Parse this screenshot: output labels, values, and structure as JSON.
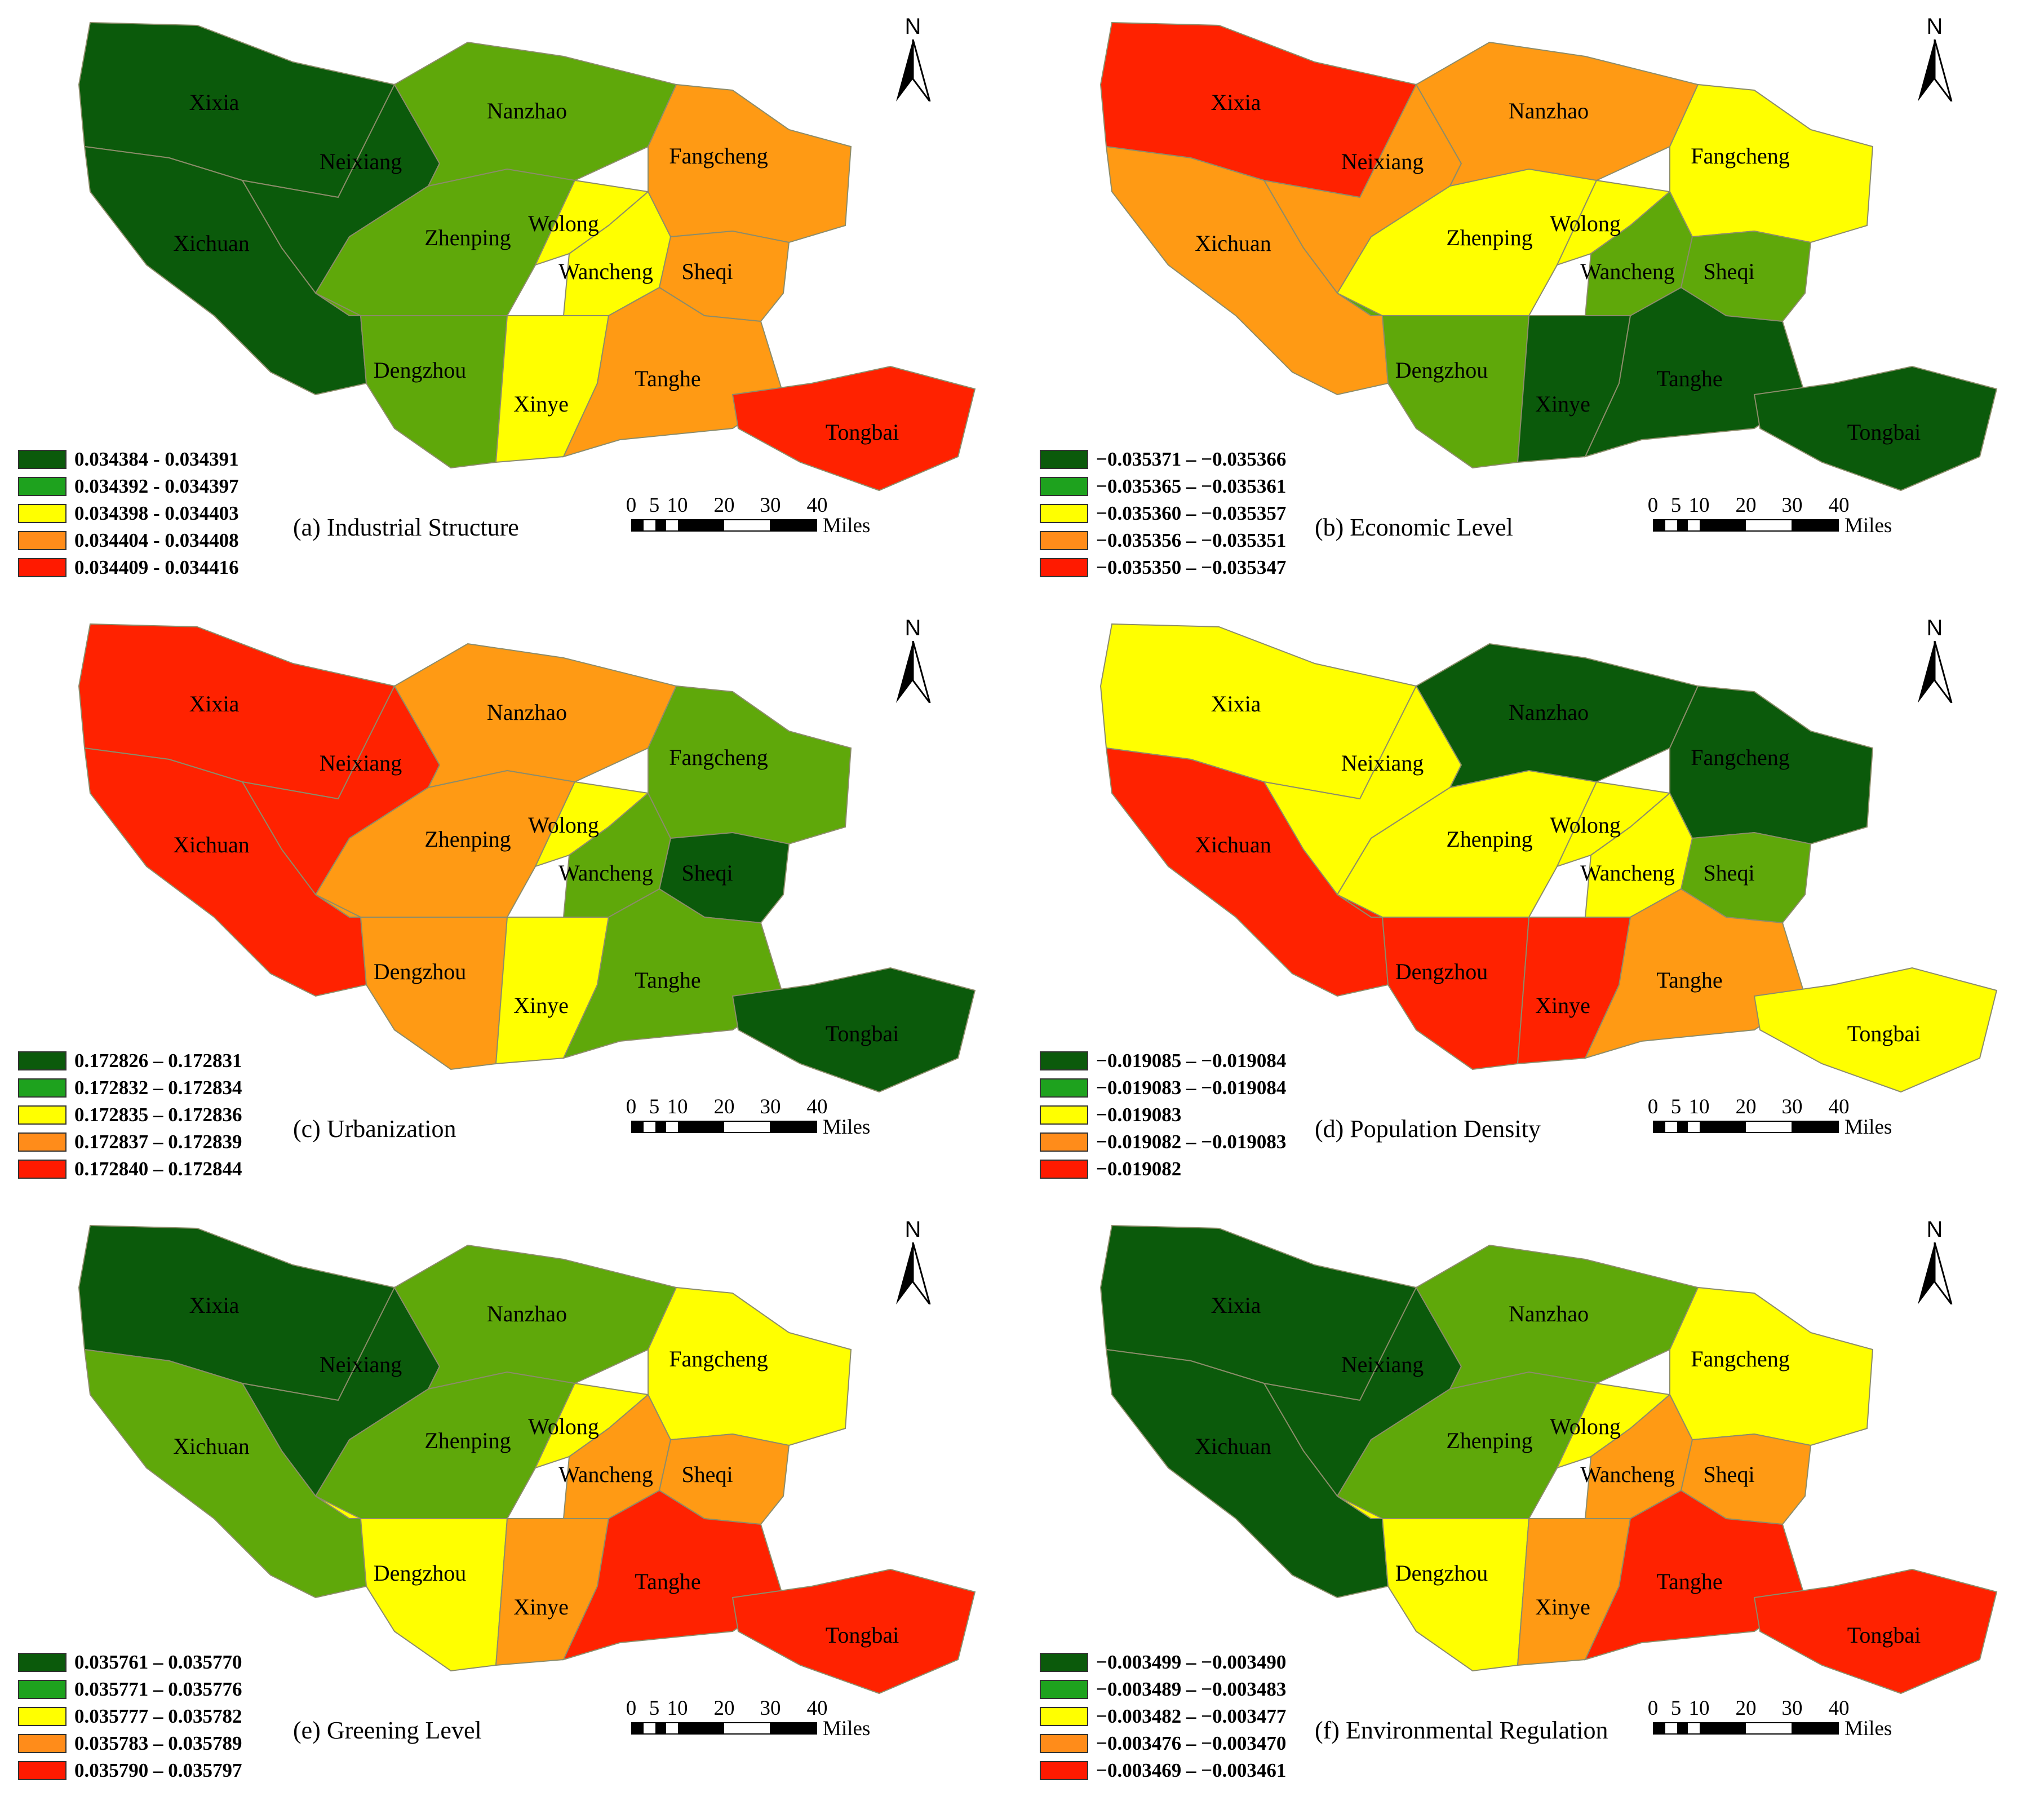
{
  "district_names": [
    "Xixia",
    "Neixiang",
    "Xichuan",
    "Nanzhao",
    "Zhenping",
    "Dengzhou",
    "Wolong",
    "Wancheng",
    "Xinye",
    "Fangcheng",
    "Sheqi",
    "Tanghe",
    "Tongbai"
  ],
  "legend_colors": [
    "#0b5a0b",
    "#1ea21e",
    "#ffff00",
    "#ff8c1a",
    "#ff1a00"
  ],
  "fill_colors": {
    "dg": "#0b5a0b",
    "lg": "#5fa80a",
    "y": "#ffff00",
    "o": "#ff9a14",
    "r": "#ff2200"
  },
  "north_letter": "N",
  "scale": {
    "ticks": [
      "0",
      "5",
      "10",
      "20",
      "30",
      "40"
    ],
    "units": "Miles"
  },
  "panels": [
    {
      "title": "(a) Industrial Structure",
      "legend": [
        "0.034384 - 0.034391",
        "0.034392 - 0.034397",
        "0.034398 - 0.034403",
        "0.034404 - 0.034408",
        "0.034409 - 0.034416"
      ],
      "classes": {
        "Xixia": "dg",
        "Neixiang": "dg",
        "Xichuan": "dg",
        "Nanzhao": "lg",
        "Zhenping": "lg",
        "Dengzhou": "lg",
        "Wolong": "y",
        "Wancheng": "y",
        "Xinye": "y",
        "Fangcheng": "o",
        "Sheqi": "o",
        "Tanghe": "o",
        "Tongbai": "r"
      }
    },
    {
      "title": "(b) Economic Level",
      "legend": [
        "−0.035371 – −0.035366",
        "−0.035365 – −0.035361",
        "−0.035360 – −0.035357",
        "−0.035356 – −0.035351",
        "−0.035350 – −0.035347"
      ],
      "classes": {
        "Xixia": "r",
        "Neixiang": "o",
        "Xichuan": "o",
        "Nanzhao": "o",
        "Zhenping": "y",
        "Dengzhou": "lg",
        "Wolong": "y",
        "Wancheng": "lg",
        "Xinye": "dg",
        "Fangcheng": "y",
        "Sheqi": "lg",
        "Tanghe": "dg",
        "Tongbai": "dg"
      }
    },
    {
      "title": "(c) Urbanization",
      "legend": [
        "0.172826 – 0.172831",
        "0.172832 – 0.172834",
        "0.172835 – 0.172836",
        "0.172837 – 0.172839",
        "0.172840 – 0.172844"
      ],
      "classes": {
        "Xixia": "r",
        "Neixiang": "r",
        "Xichuan": "r",
        "Nanzhao": "o",
        "Zhenping": "o",
        "Dengzhou": "o",
        "Wolong": "y",
        "Wancheng": "lg",
        "Xinye": "y",
        "Fangcheng": "lg",
        "Sheqi": "dg",
        "Tanghe": "lg",
        "Tongbai": "dg"
      }
    },
    {
      "title": "(d) Population Density",
      "legend": [
        "−0.019085 – −0.019084",
        "−0.019083 – −0.019084",
        "−0.019083",
        "−0.019082 – −0.019083",
        "−0.019082"
      ],
      "classes": {
        "Xixia": "y",
        "Neixiang": "y",
        "Xichuan": "r",
        "Nanzhao": "dg",
        "Zhenping": "y",
        "Dengzhou": "r",
        "Wolong": "y",
        "Wancheng": "y",
        "Xinye": "r",
        "Fangcheng": "dg",
        "Sheqi": "lg",
        "Tanghe": "o",
        "Tongbai": "y"
      }
    },
    {
      "title": "(e) Greening Level",
      "legend": [
        "0.035761 – 0.035770",
        "0.035771 – 0.035776",
        "0.035777 – 0.035782",
        "0.035783 – 0.035789",
        "0.035790 – 0.035797"
      ],
      "classes": {
        "Xixia": "dg",
        "Neixiang": "dg",
        "Xichuan": "lg",
        "Nanzhao": "lg",
        "Zhenping": "lg",
        "Dengzhou": "y",
        "Wolong": "y",
        "Wancheng": "o",
        "Xinye": "o",
        "Fangcheng": "y",
        "Sheqi": "o",
        "Tanghe": "r",
        "Tongbai": "r"
      }
    },
    {
      "title": "(f) Environmental Regulation",
      "legend": [
        "−0.003499 – −0.003490",
        "−0.003489 – −0.003483",
        "−0.003482 – −0.003477",
        "−0.003476 – −0.003470",
        "−0.003469 – −0.003461"
      ],
      "classes": {
        "Xixia": "dg",
        "Neixiang": "dg",
        "Xichuan": "dg",
        "Nanzhao": "lg",
        "Zhenping": "lg",
        "Dengzhou": "y",
        "Wolong": "y",
        "Wancheng": "o",
        "Xinye": "o",
        "Fangcheng": "y",
        "Sheqi": "o",
        "Tanghe": "r",
        "Tongbai": "r"
      }
    }
  ]
}
